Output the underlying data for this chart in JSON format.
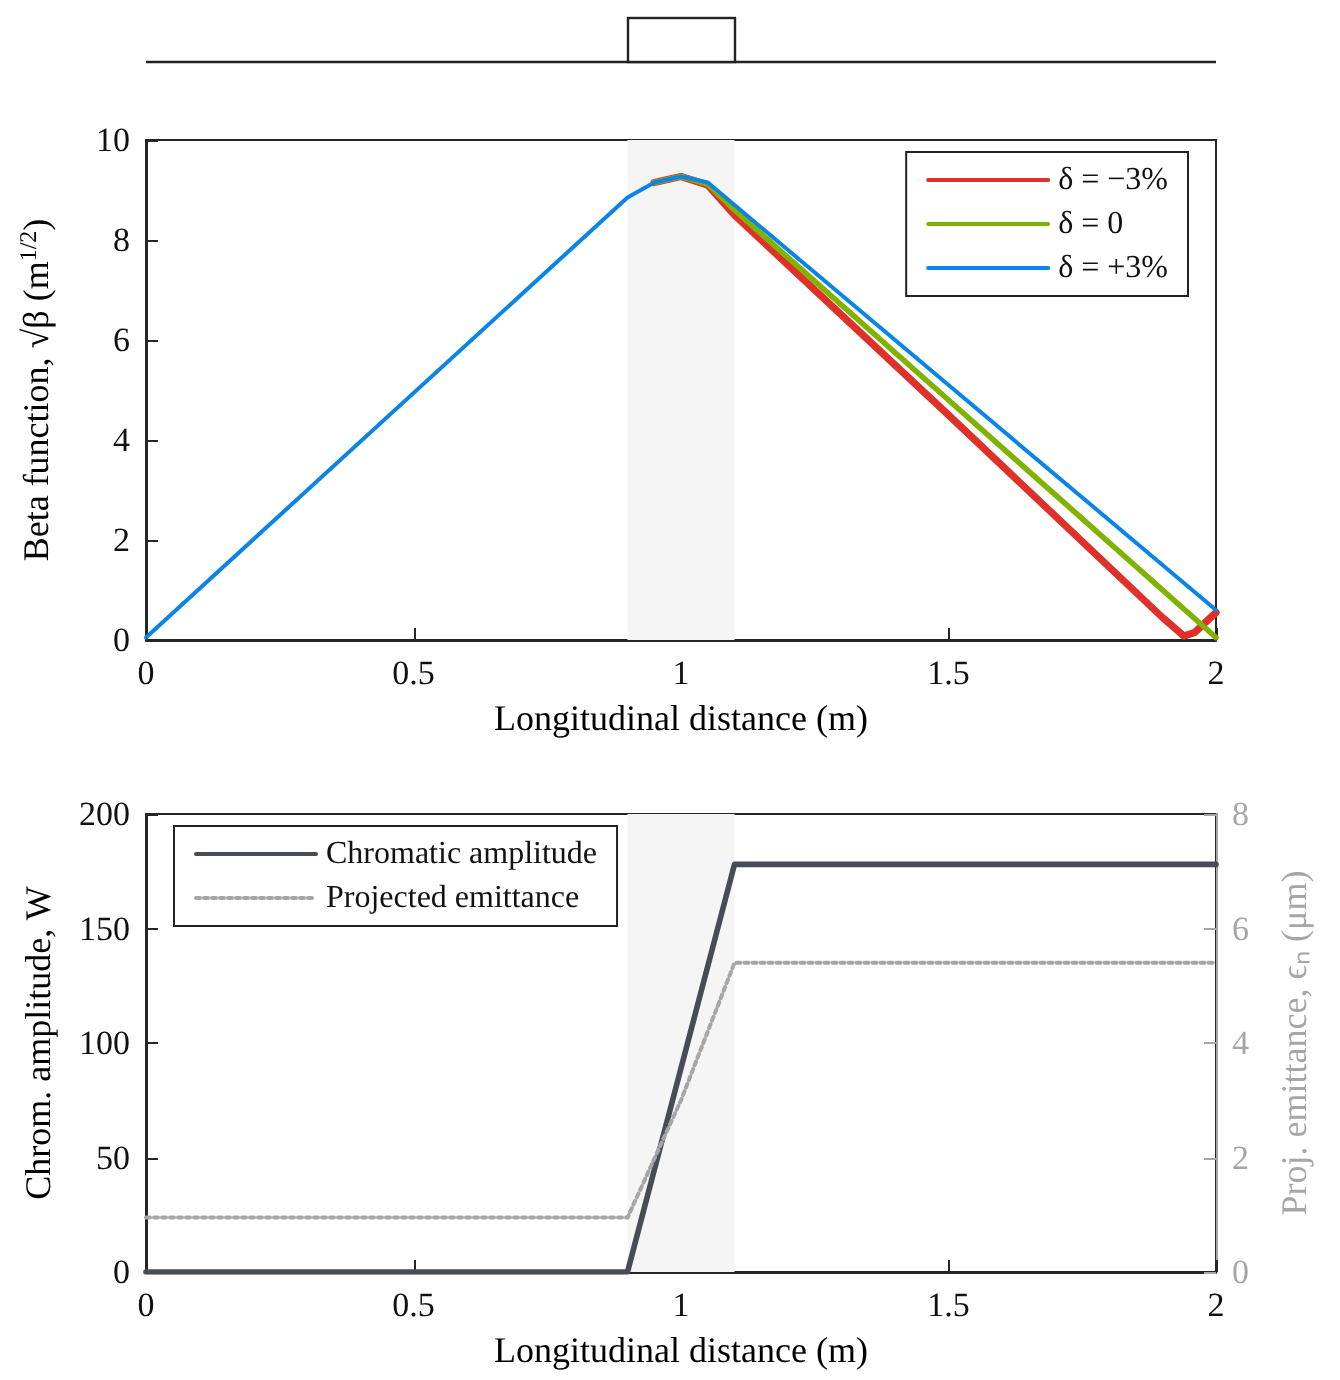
{
  "chart_data": [
    {
      "type": "line",
      "xlabel": "Longitudinal distance (m)",
      "ylabel": "Beta function, √β (m$^{1/2}$)",
      "xlim": [
        0,
        2
      ],
      "xticks": [
        0,
        0.5,
        1,
        1.5,
        2
      ],
      "ylim": [
        0,
        10
      ],
      "yticks": [
        0,
        2,
        4,
        6,
        8,
        10
      ],
      "grid": false,
      "legend": "top right",
      "marker": "none",
      "line_style": "solid",
      "bands": [
        {
          "axis": "x",
          "from": 0.9,
          "to": 1.1,
          "color": "#f5f5f5"
        }
      ],
      "series": [
        {
          "name": "δ = −3%",
          "color": "#e0302a",
          "x": [
            0.95,
            1.0,
            1.05,
            1.1,
            1.5,
            1.9,
            1.94,
            1.96,
            2.0
          ],
          "values": [
            9.15,
            9.27,
            9.1,
            8.5,
            4.5,
            0.45,
            0.08,
            0.15,
            0.55
          ]
        },
        {
          "name": "δ = 0",
          "color": "#80b300",
          "x": [
            0.95,
            1.0,
            1.05,
            1.1,
            1.5,
            2.0
          ],
          "values": [
            9.15,
            9.27,
            9.12,
            8.6,
            4.8,
            0.05
          ]
        },
        {
          "name": "δ = +3%",
          "color": "#0a84e8",
          "x": [
            0,
            0.9,
            0.95,
            1.0,
            1.05,
            1.1,
            1.5,
            2.0
          ],
          "values": [
            0.05,
            8.85,
            9.15,
            9.27,
            9.15,
            8.7,
            5.1,
            0.6
          ]
        }
      ]
    },
    {
      "type": "line",
      "xlabel": "Longitudinal distance (m)",
      "ylabel": "Chrom. amplitude, W",
      "y2label": "Proj. emittance, ϵₙ (μm)",
      "xlim": [
        0,
        2
      ],
      "xticks": [
        0,
        0.5,
        1,
        1.5,
        2
      ],
      "ylim": [
        0,
        200
      ],
      "yticks": [
        0,
        50,
        100,
        150,
        200
      ],
      "y2lim": [
        0,
        8
      ],
      "y2ticks": [
        0,
        2,
        4,
        6,
        8
      ],
      "grid": false,
      "legend": "top left",
      "marker": "none",
      "bands": [
        {
          "axis": "x",
          "from": 0.9,
          "to": 1.1,
          "color": "#f5f5f5"
        }
      ],
      "series": [
        {
          "name": "Chromatic amplitude",
          "color": "#474c58",
          "line_style": "solid",
          "x": [
            0,
            0.9,
            1.1,
            2.0
          ],
          "values": [
            0,
            0,
            178,
            178
          ]
        },
        {
          "name": "Projected emittance",
          "color": "#a6a6a6",
          "line_style": "dotted",
          "axis": "y2",
          "x": [
            0,
            0.9,
            1.0,
            1.1,
            2.0
          ],
          "values": [
            0.95,
            0.95,
            3.0,
            5.4,
            5.4
          ]
        }
      ]
    }
  ]
}
